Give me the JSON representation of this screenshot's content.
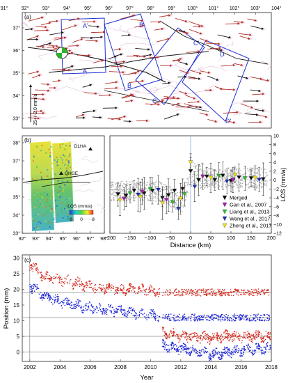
{
  "panel_a": {
    "label": "(a)",
    "top_ticks": [
      "91°",
      "92°",
      "93°",
      "94°",
      "95°",
      "96°",
      "97°",
      "98°",
      "99°",
      "100°",
      "101°",
      "102°",
      "103°",
      "104°"
    ],
    "lat_ticks": [
      "37°",
      "36°",
      "35°",
      "34°",
      "33°"
    ],
    "scale_label": "25+/-2.0 mm/a",
    "profile_labels": [
      "A'",
      "A",
      "B'",
      "B",
      "C'",
      "C",
      "D'",
      "D"
    ]
  },
  "panel_b": {
    "label": "(b)",
    "lon_ticks": [
      "92°",
      "93°",
      "94°",
      "95°",
      "96°",
      "97°",
      "98°"
    ],
    "lat_ticks": [
      "38°",
      "37°",
      "36°",
      "35°",
      "34°",
      "33°"
    ],
    "stations": [
      "DLHA",
      "QHGE"
    ],
    "colorbar_title": "LOS (mm/a)",
    "colorbar_ticks": [
      "−8",
      "0",
      "8"
    ]
  },
  "panel_profile": {
    "xlabel": "Distance (km)",
    "ylabel": "LOS (mm/a)",
    "x_ticks": [
      "−200",
      "−150",
      "−100",
      "−50",
      "0",
      "50",
      "100",
      "150",
      "200"
    ],
    "y_ticks": [
      "10",
      "8",
      "6",
      "4",
      "2",
      "0",
      "−2",
      "−4",
      "−6",
      "−8",
      "−10",
      "−12"
    ],
    "legend": [
      {
        "label": "Merged",
        "color": "#111111"
      },
      {
        "label": "Gan et al., 2007",
        "color": "#b01ab8"
      },
      {
        "label": "Liang et al., 2013",
        "color": "#27c12b"
      },
      {
        "label": "Wang et al., 2017",
        "color": "#1f2fbf"
      },
      {
        "label": "Zheng et al., 2017",
        "color": "#f2e21a"
      }
    ]
  },
  "panel_c": {
    "label": "(c)",
    "xlabel": "Year",
    "ylabel": "Position (mm)",
    "x_ticks": [
      "2002",
      "2004",
      "2006",
      "2008",
      "2010",
      "2012",
      "2014",
      "2016",
      "2018"
    ],
    "y_ticks": [
      "0",
      "5",
      "10",
      "15",
      "20",
      "25",
      "30"
    ]
  },
  "chart_data": [
    {
      "type": "scatter",
      "xlabel": "Distance (km)",
      "ylabel": "LOS (mm/a)",
      "xlim": [
        -200,
        200
      ],
      "ylim": [
        -12,
        10
      ],
      "series": [
        {
          "name": "Merged",
          "x": [
            -180,
            -160,
            -140,
            -115,
            -95,
            -70,
            -55,
            -40,
            -20,
            0,
            20,
            40,
            60,
            80,
            100,
            120,
            150,
            180
          ],
          "y": [
            -3.2,
            -3.5,
            -2.4,
            -3,
            -2.4,
            -4,
            -3.4,
            -2.4,
            -2,
            2,
            0,
            0.8,
            0,
            1,
            -0.2,
            0.6,
            0.4,
            0.2
          ]
        },
        {
          "name": "Gan et al., 2007",
          "x": [
            -165,
            -120,
            -60,
            30,
            105
          ],
          "y": [
            -4.2,
            -2.6,
            -4.5,
            0.8,
            0
          ]
        },
        {
          "name": "Liang et al., 2013",
          "x": [
            -150,
            -100,
            -45,
            -15,
            70,
            135
          ],
          "y": [
            -3,
            -2,
            -5,
            -3.2,
            0.9,
            0.4
          ]
        },
        {
          "name": "Wang et al., 2017",
          "x": [
            -130,
            -80,
            -30,
            10,
            90,
            170
          ],
          "y": [
            -3.3,
            -2.2,
            -6.5,
            -1.5,
            -0.3,
            0.1
          ]
        },
        {
          "name": "Zheng et al., 2017",
          "x": [
            -175,
            -125,
            -70,
            -25,
            0,
            50,
            110,
            160
          ],
          "y": [
            -4.6,
            -3.8,
            -5.2,
            -4.2,
            4,
            0.5,
            1.2,
            0.5
          ]
        }
      ]
    },
    {
      "type": "scatter",
      "xlabel": "Year",
      "ylabel": "Position (mm)",
      "xlim": [
        2001.5,
        2018
      ],
      "ylim": [
        -3,
        31
      ],
      "series": [
        {
          "color": "#d42a1e",
          "x": [
            2002,
            2003,
            2004,
            2005,
            2006,
            2007,
            2008,
            2009,
            2010,
            2011,
            2012,
            2013,
            2014,
            2015,
            2016,
            2017,
            2018
          ],
          "y": [
            28,
            24,
            23,
            22,
            21,
            20.5,
            20,
            20,
            19.5,
            19,
            19,
            19,
            19,
            19,
            19,
            19,
            19
          ]
        },
        {
          "color": "#1c24d6",
          "x": [
            2002,
            2003,
            2004,
            2005,
            2006,
            2007,
            2008,
            2009,
            2010,
            2011,
            2012,
            2013,
            2014,
            2015,
            2016,
            2017,
            2018
          ],
          "y": [
            21,
            18,
            16,
            15,
            14,
            13.5,
            13,
            12.5,
            12,
            11,
            11,
            11,
            11,
            11,
            11,
            11,
            11
          ]
        },
        {
          "color": "#d42a1e",
          "x": [
            2010.8,
            2012,
            2013,
            2014,
            2015,
            2016,
            2017,
            2018
          ],
          "y": [
            6,
            5,
            5,
            4.5,
            5,
            5,
            5,
            5
          ]
        },
        {
          "color": "#1c24d6",
          "x": [
            2010.8,
            2012,
            2013,
            2014,
            2015,
            2016,
            2017,
            2018
          ],
          "y": [
            2,
            1,
            0.5,
            -1,
            0,
            0.5,
            1,
            1
          ]
        }
      ]
    }
  ]
}
